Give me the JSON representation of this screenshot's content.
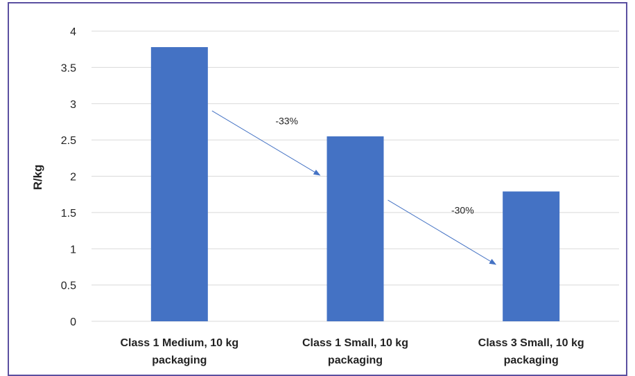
{
  "chart_data": {
    "type": "bar",
    "categories": [
      [
        "Class 1 Medium, 10 kg",
        "packaging"
      ],
      [
        "Class 1 Small, 10 kg",
        "packaging"
      ],
      [
        "Class 3 Small, 10 kg",
        "packaging"
      ]
    ],
    "values": [
      3.78,
      2.55,
      1.79
    ],
    "ylabel": "R/kg",
    "ylim": [
      0,
      4
    ],
    "yticks": [
      "0",
      "0.5",
      "1",
      "1.5",
      "2",
      "2.5",
      "3",
      "3.5",
      "4"
    ],
    "grid": true,
    "bar_color": "#4472C4",
    "annotations": [
      {
        "text": "-33%",
        "from_category": 0,
        "to_category": 1
      },
      {
        "text": "-30%",
        "from_category": 1,
        "to_category": 2
      }
    ]
  },
  "colors": {
    "frame": "#5a4fa0",
    "grid": "#d9d9d9",
    "arrow": "#4472C4"
  }
}
